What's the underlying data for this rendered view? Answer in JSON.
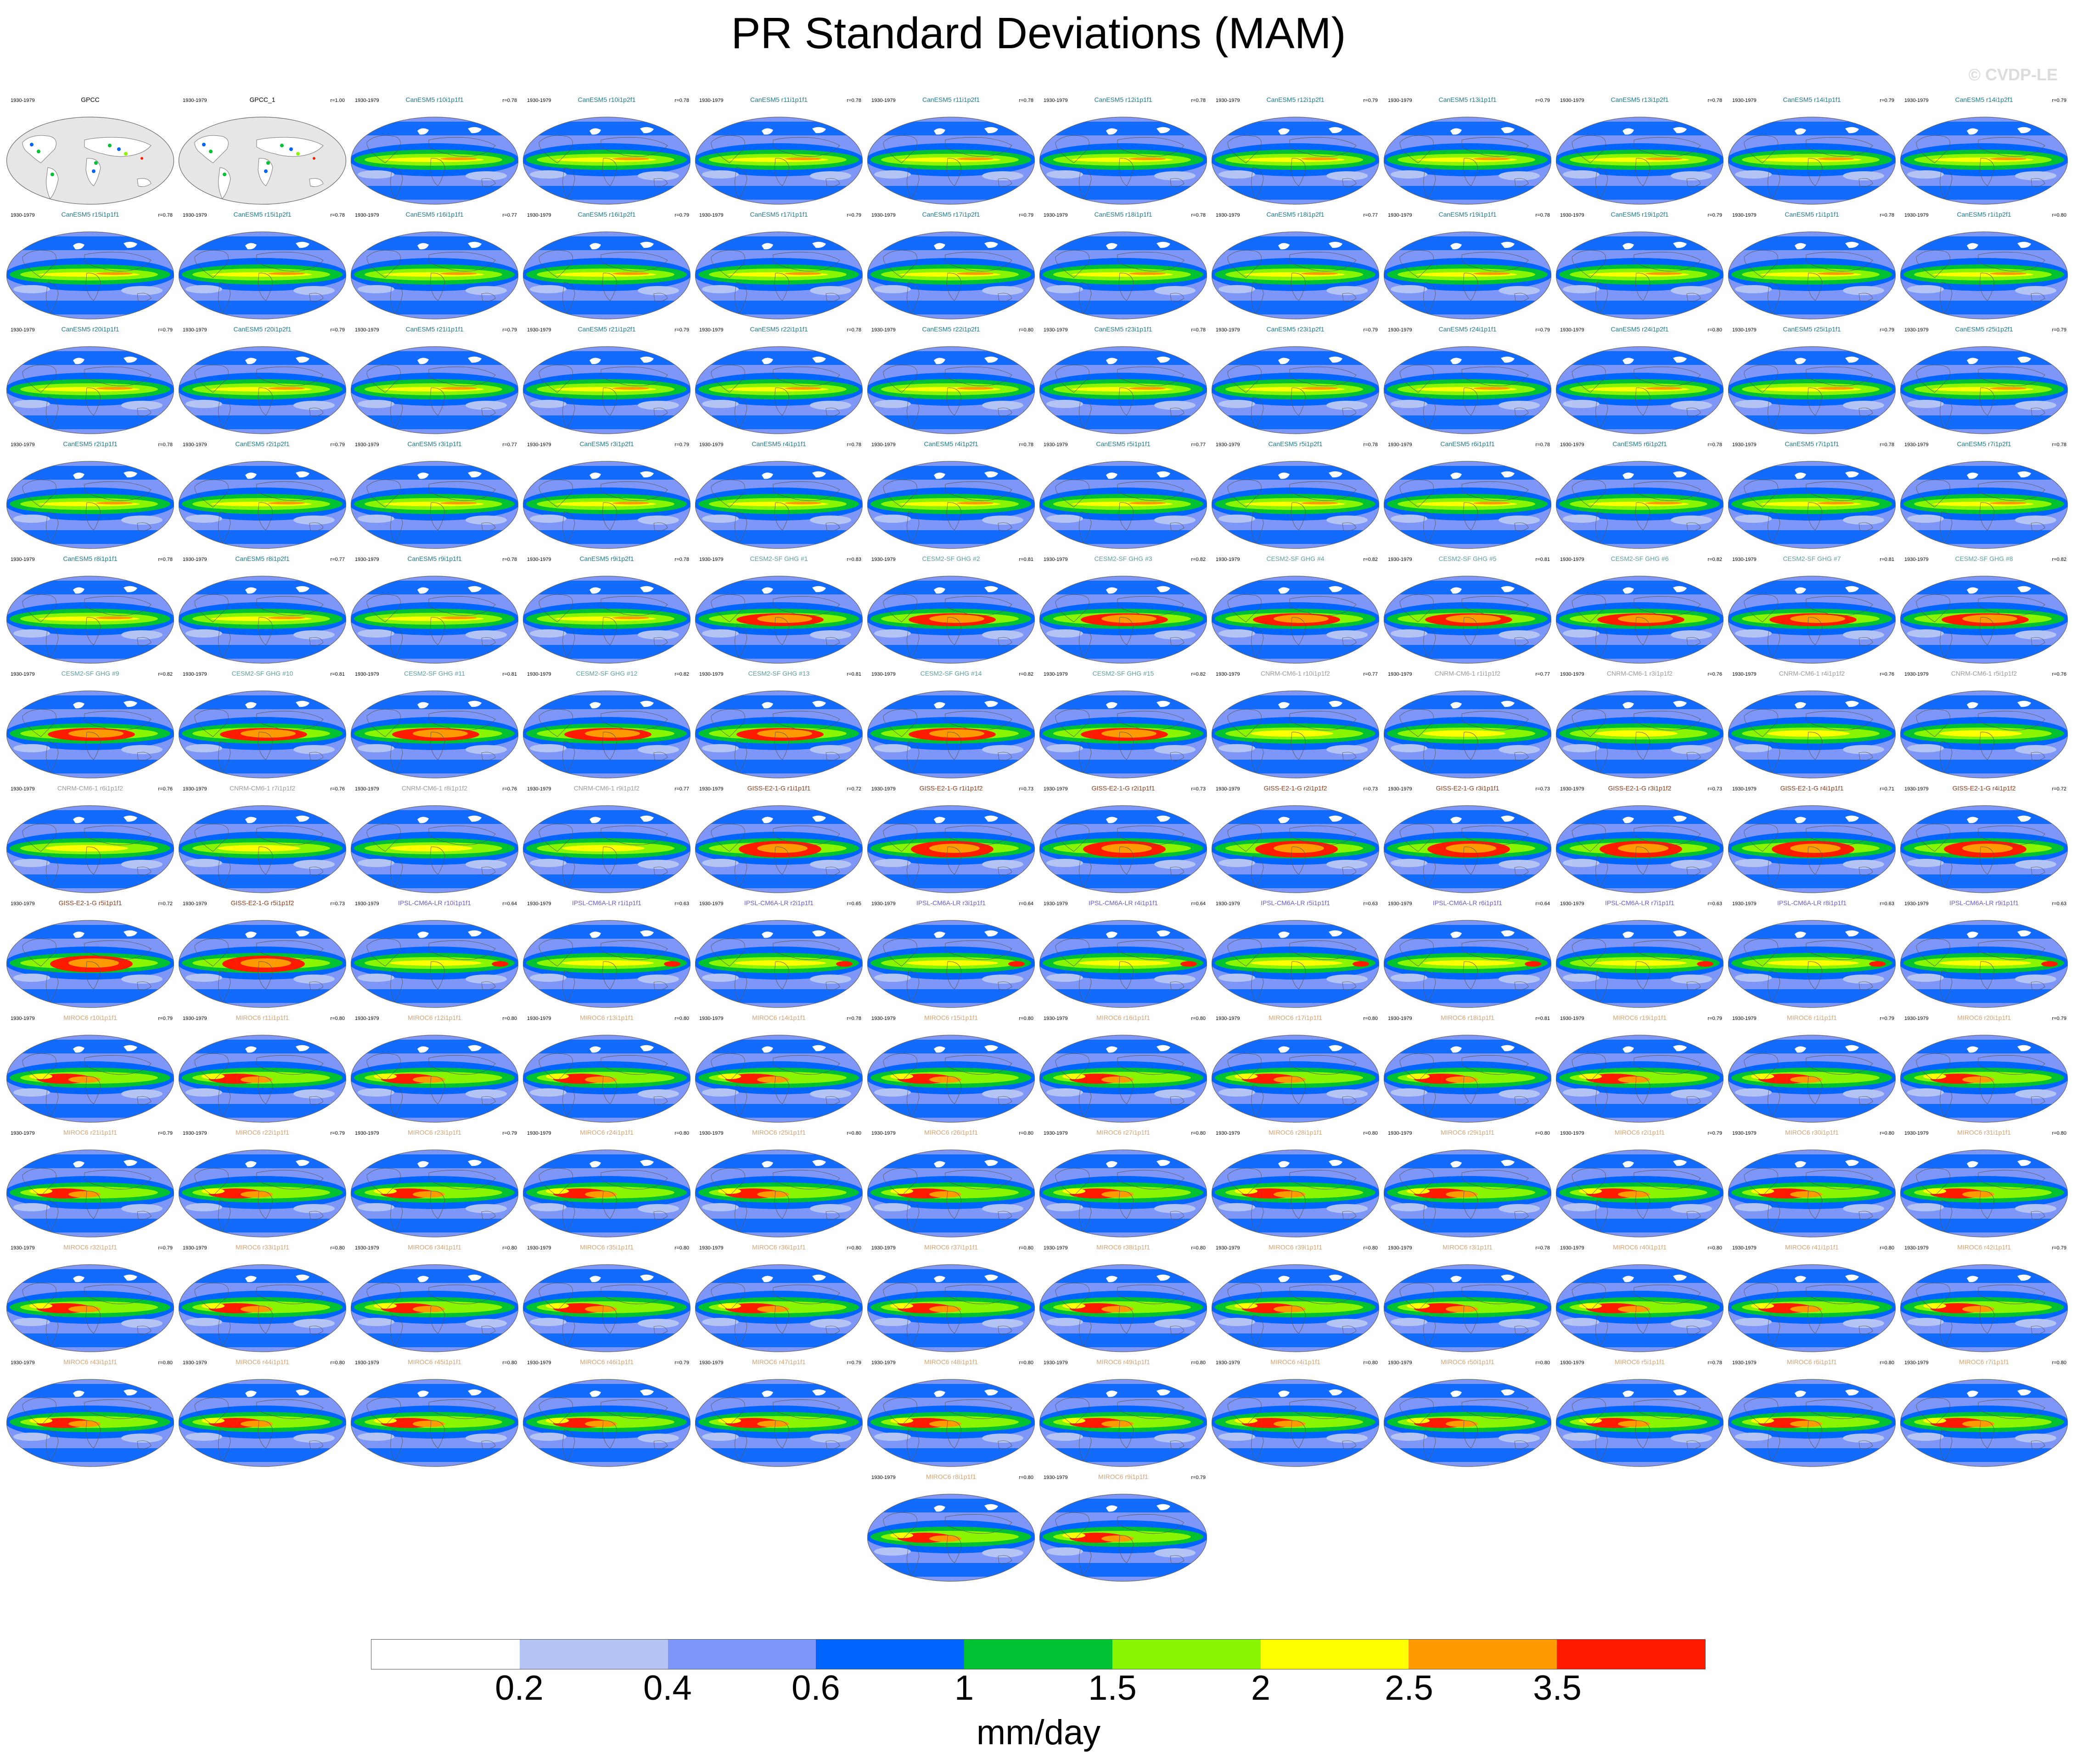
{
  "title": "PR Standard Deviations (MAM)",
  "watermark": "© CVDP-LE",
  "period": "1930-1979",
  "panels": [
    {
      "name": "GPCC",
      "r": "",
      "kind": "obs",
      "color": "#000000"
    },
    {
      "name": "GPCC_1",
      "r": "r=1.00",
      "kind": "obs",
      "color": "#000000"
    },
    {
      "name": "CanESM5 r10i1p1f1",
      "r": "r=0.78",
      "kind": "can",
      "color": "#1f7a8c"
    },
    {
      "name": "CanESM5 r10i1p2f1",
      "r": "r=0.78",
      "kind": "can",
      "color": "#1f7a8c"
    },
    {
      "name": "CanESM5 r11i1p1f1",
      "r": "r=0.78",
      "kind": "can",
      "color": "#1f7a8c"
    },
    {
      "name": "CanESM5 r11i1p2f1",
      "r": "r=0.78",
      "kind": "can",
      "color": "#1f7a8c"
    },
    {
      "name": "CanESM5 r12i1p1f1",
      "r": "r=0.78",
      "kind": "can",
      "color": "#1f7a8c"
    },
    {
      "name": "CanESM5 r12i1p2f1",
      "r": "r=0.79",
      "kind": "can",
      "color": "#1f7a8c"
    },
    {
      "name": "CanESM5 r13i1p1f1",
      "r": "r=0.79",
      "kind": "can",
      "color": "#1f7a8c"
    },
    {
      "name": "CanESM5 r13i1p2f1",
      "r": "r=0.78",
      "kind": "can",
      "color": "#1f7a8c"
    },
    {
      "name": "CanESM5 r14i1p1f1",
      "r": "r=0.79",
      "kind": "can",
      "color": "#1f7a8c"
    },
    {
      "name": "CanESM5 r14i1p2f1",
      "r": "r=0.79",
      "kind": "can",
      "color": "#1f7a8c"
    },
    {
      "name": "CanESM5 r15i1p1f1",
      "r": "r=0.78",
      "kind": "can",
      "color": "#1f7a8c"
    },
    {
      "name": "CanESM5 r15i1p2f1",
      "r": "r=0.78",
      "kind": "can",
      "color": "#1f7a8c"
    },
    {
      "name": "CanESM5 r16i1p1f1",
      "r": "r=0.77",
      "kind": "can",
      "color": "#1f7a8c"
    },
    {
      "name": "CanESM5 r16i1p2f1",
      "r": "r=0.79",
      "kind": "can",
      "color": "#1f7a8c"
    },
    {
      "name": "CanESM5 r17i1p1f1",
      "r": "r=0.79",
      "kind": "can",
      "color": "#1f7a8c"
    },
    {
      "name": "CanESM5 r17i1p2f1",
      "r": "r=0.79",
      "kind": "can",
      "color": "#1f7a8c"
    },
    {
      "name": "CanESM5 r18i1p1f1",
      "r": "r=0.78",
      "kind": "can",
      "color": "#1f7a8c"
    },
    {
      "name": "CanESM5 r18i1p2f1",
      "r": "r=0.77",
      "kind": "can",
      "color": "#1f7a8c"
    },
    {
      "name": "CanESM5 r19i1p1f1",
      "r": "r=0.78",
      "kind": "can",
      "color": "#1f7a8c"
    },
    {
      "name": "CanESM5 r19i1p2f1",
      "r": "r=0.79",
      "kind": "can",
      "color": "#1f7a8c"
    },
    {
      "name": "CanESM5 r1i1p1f1",
      "r": "r=0.78",
      "kind": "can",
      "color": "#1f7a8c"
    },
    {
      "name": "CanESM5 r1i1p2f1",
      "r": "r=0.80",
      "kind": "can",
      "color": "#1f7a8c"
    },
    {
      "name": "CanESM5 r20i1p1f1",
      "r": "r=0.79",
      "kind": "can",
      "color": "#1f7a8c"
    },
    {
      "name": "CanESM5 r20i1p2f1",
      "r": "r=0.79",
      "kind": "can",
      "color": "#1f7a8c"
    },
    {
      "name": "CanESM5 r21i1p1f1",
      "r": "r=0.79",
      "kind": "can",
      "color": "#1f7a8c"
    },
    {
      "name": "CanESM5 r21i1p2f1",
      "r": "r=0.79",
      "kind": "can",
      "color": "#1f7a8c"
    },
    {
      "name": "CanESM5 r22i1p1f1",
      "r": "r=0.78",
      "kind": "can",
      "color": "#1f7a8c"
    },
    {
      "name": "CanESM5 r22i1p2f1",
      "r": "r=0.80",
      "kind": "can",
      "color": "#1f7a8c"
    },
    {
      "name": "CanESM5 r23i1p1f1",
      "r": "r=0.78",
      "kind": "can",
      "color": "#1f7a8c"
    },
    {
      "name": "CanESM5 r23i1p2f1",
      "r": "r=0.79",
      "kind": "can",
      "color": "#1f7a8c"
    },
    {
      "name": "CanESM5 r24i1p1f1",
      "r": "r=0.79",
      "kind": "can",
      "color": "#1f7a8c"
    },
    {
      "name": "CanESM5 r24i1p2f1",
      "r": "r=0.80",
      "kind": "can",
      "color": "#1f7a8c"
    },
    {
      "name": "CanESM5 r25i1p1f1",
      "r": "r=0.79",
      "kind": "can",
      "color": "#1f7a8c"
    },
    {
      "name": "CanESM5 r25i1p2f1",
      "r": "r=0.79",
      "kind": "can",
      "color": "#1f7a8c"
    },
    {
      "name": "CanESM5 r2i1p1f1",
      "r": "r=0.78",
      "kind": "can",
      "color": "#1f7a8c"
    },
    {
      "name": "CanESM5 r2i1p2f1",
      "r": "r=0.79",
      "kind": "can",
      "color": "#1f7a8c"
    },
    {
      "name": "CanESM5 r3i1p1f1",
      "r": "r=0.77",
      "kind": "can",
      "color": "#1f7a8c"
    },
    {
      "name": "CanESM5 r3i1p2f1",
      "r": "r=0.79",
      "kind": "can",
      "color": "#1f7a8c"
    },
    {
      "name": "CanESM5 r4i1p1f1",
      "r": "r=0.78",
      "kind": "can",
      "color": "#1f7a8c"
    },
    {
      "name": "CanESM5 r4i1p2f1",
      "r": "r=0.78",
      "kind": "can",
      "color": "#1f7a8c"
    },
    {
      "name": "CanESM5 r5i1p1f1",
      "r": "r=0.77",
      "kind": "can",
      "color": "#1f7a8c"
    },
    {
      "name": "CanESM5 r5i1p2f1",
      "r": "r=0.78",
      "kind": "can",
      "color": "#1f7a8c"
    },
    {
      "name": "CanESM5 r6i1p1f1",
      "r": "r=0.78",
      "kind": "can",
      "color": "#1f7a8c"
    },
    {
      "name": "CanESM5 r6i1p2f1",
      "r": "r=0.78",
      "kind": "can",
      "color": "#1f7a8c"
    },
    {
      "name": "CanESM5 r7i1p1f1",
      "r": "r=0.78",
      "kind": "can",
      "color": "#1f7a8c"
    },
    {
      "name": "CanESM5 r7i1p2f1",
      "r": "r=0.78",
      "kind": "can",
      "color": "#1f7a8c"
    },
    {
      "name": "CanESM5 r8i1p1f1",
      "r": "r=0.78",
      "kind": "can",
      "color": "#1f7a8c"
    },
    {
      "name": "CanESM5 r8i1p2f1",
      "r": "r=0.77",
      "kind": "can",
      "color": "#1f7a8c"
    },
    {
      "name": "CanESM5 r9i1p1f1",
      "r": "r=0.78",
      "kind": "can",
      "color": "#1f7a8c"
    },
    {
      "name": "CanESM5 r9i1p2f1",
      "r": "r=0.78",
      "kind": "can",
      "color": "#1f7a8c"
    },
    {
      "name": "CESM2-SF GHG #1",
      "r": "r=0.83",
      "kind": "cesm",
      "color": "#5f9ea0"
    },
    {
      "name": "CESM2-SF GHG #2",
      "r": "r=0.81",
      "kind": "cesm",
      "color": "#5f9ea0"
    },
    {
      "name": "CESM2-SF GHG #3",
      "r": "r=0.82",
      "kind": "cesm",
      "color": "#5f9ea0"
    },
    {
      "name": "CESM2-SF GHG #4",
      "r": "r=0.82",
      "kind": "cesm",
      "color": "#5f9ea0"
    },
    {
      "name": "CESM2-SF GHG #5",
      "r": "r=0.81",
      "kind": "cesm",
      "color": "#5f9ea0"
    },
    {
      "name": "CESM2-SF GHG #6",
      "r": "r=0.82",
      "kind": "cesm",
      "color": "#5f9ea0"
    },
    {
      "name": "CESM2-SF GHG #7",
      "r": "r=0.81",
      "kind": "cesm",
      "color": "#5f9ea0"
    },
    {
      "name": "CESM2-SF GHG #8",
      "r": "r=0.82",
      "kind": "cesm",
      "color": "#5f9ea0"
    },
    {
      "name": "CESM2-SF GHG #9",
      "r": "r=0.82",
      "kind": "cesm",
      "color": "#5f9ea0"
    },
    {
      "name": "CESM2-SF GHG #10",
      "r": "r=0.81",
      "kind": "cesm",
      "color": "#5f9ea0"
    },
    {
      "name": "CESM2-SF GHG #11",
      "r": "r=0.81",
      "kind": "cesm",
      "color": "#5f9ea0"
    },
    {
      "name": "CESM2-SF GHG #12",
      "r": "r=0.82",
      "kind": "cesm",
      "color": "#5f9ea0"
    },
    {
      "name": "CESM2-SF GHG #13",
      "r": "r=0.81",
      "kind": "cesm",
      "color": "#5f9ea0"
    },
    {
      "name": "CESM2-SF GHG #14",
      "r": "r=0.82",
      "kind": "cesm",
      "color": "#5f9ea0"
    },
    {
      "name": "CESM2-SF GHG #15",
      "r": "r=0.82",
      "kind": "cesm",
      "color": "#5f9ea0"
    },
    {
      "name": "CNRM-CM6-1 r10i1p1f2",
      "r": "r=0.77",
      "kind": "cnrm",
      "color": "#9a9a9a"
    },
    {
      "name": "CNRM-CM6-1 r1i1p1f2",
      "r": "r=0.77",
      "kind": "cnrm",
      "color": "#9a9a9a"
    },
    {
      "name": "CNRM-CM6-1 r3i1p1f2",
      "r": "r=0.76",
      "kind": "cnrm",
      "color": "#9a9a9a"
    },
    {
      "name": "CNRM-CM6-1 r4i1p1f2",
      "r": "r=0.76",
      "kind": "cnrm",
      "color": "#9a9a9a"
    },
    {
      "name": "CNRM-CM6-1 r5i1p1f2",
      "r": "r=0.76",
      "kind": "cnrm",
      "color": "#9a9a9a"
    },
    {
      "name": "CNRM-CM6-1 r6i1p1f2",
      "r": "r=0.76",
      "kind": "cnrm",
      "color": "#9a9a9a"
    },
    {
      "name": "CNRM-CM6-1 r7i1p1f2",
      "r": "r=0.76",
      "kind": "cnrm",
      "color": "#9a9a9a"
    },
    {
      "name": "CNRM-CM6-1 r8i1p1f2",
      "r": "r=0.76",
      "kind": "cnrm",
      "color": "#9a9a9a"
    },
    {
      "name": "CNRM-CM6-1 r9i1p1f2",
      "r": "r=0.77",
      "kind": "cnrm",
      "color": "#9a9a9a"
    },
    {
      "name": "GISS-E2-1-G r1i1p1f1",
      "r": "r=0.72",
      "kind": "giss",
      "color": "#8b3a1a"
    },
    {
      "name": "GISS-E2-1-G r1i1p1f2",
      "r": "r=0.73",
      "kind": "giss",
      "color": "#8b3a1a"
    },
    {
      "name": "GISS-E2-1-G r2i1p1f1",
      "r": "r=0.73",
      "kind": "giss",
      "color": "#8b3a1a"
    },
    {
      "name": "GISS-E2-1-G r2i1p1f2",
      "r": "r=0.73",
      "kind": "giss",
      "color": "#8b3a1a"
    },
    {
      "name": "GISS-E2-1-G r3i1p1f1",
      "r": "r=0.73",
      "kind": "giss",
      "color": "#8b3a1a"
    },
    {
      "name": "GISS-E2-1-G r3i1p1f2",
      "r": "r=0.73",
      "kind": "giss",
      "color": "#8b3a1a"
    },
    {
      "name": "GISS-E2-1-G r4i1p1f1",
      "r": "r=0.71",
      "kind": "giss",
      "color": "#8b3a1a"
    },
    {
      "name": "GISS-E2-1-G r4i1p1f2",
      "r": "r=0.72",
      "kind": "giss",
      "color": "#8b3a1a"
    },
    {
      "name": "GISS-E2-1-G r5i1p1f1",
      "r": "r=0.72",
      "kind": "giss",
      "color": "#8b3a1a"
    },
    {
      "name": "GISS-E2-1-G r5i1p1f2",
      "r": "r=0.73",
      "kind": "giss",
      "color": "#8b3a1a"
    },
    {
      "name": "IPSL-CM6A-LR r10i1p1f1",
      "r": "r=0.64",
      "kind": "ipsl",
      "color": "#6a5acd"
    },
    {
      "name": "IPSL-CM6A-LR r1i1p1f1",
      "r": "r=0.63",
      "kind": "ipsl",
      "color": "#6a5acd"
    },
    {
      "name": "IPSL-CM6A-LR r2i1p1f1",
      "r": "r=0.65",
      "kind": "ipsl",
      "color": "#6a5acd"
    },
    {
      "name": "IPSL-CM6A-LR r3i1p1f1",
      "r": "r=0.64",
      "kind": "ipsl",
      "color": "#6a5acd"
    },
    {
      "name": "IPSL-CM6A-LR r4i1p1f1",
      "r": "r=0.64",
      "kind": "ipsl",
      "color": "#6a5acd"
    },
    {
      "name": "IPSL-CM6A-LR r5i1p1f1",
      "r": "r=0.63",
      "kind": "ipsl",
      "color": "#6a5acd"
    },
    {
      "name": "IPSL-CM6A-LR r6i1p1f1",
      "r": "r=0.64",
      "kind": "ipsl",
      "color": "#6a5acd"
    },
    {
      "name": "IPSL-CM6A-LR r7i1p1f1",
      "r": "r=0.63",
      "kind": "ipsl",
      "color": "#6a5acd"
    },
    {
      "name": "IPSL-CM6A-LR r8i1p1f1",
      "r": "r=0.63",
      "kind": "ipsl",
      "color": "#6a5acd"
    },
    {
      "name": "IPSL-CM6A-LR r9i1p1f1",
      "r": "r=0.63",
      "kind": "ipsl",
      "color": "#6a5acd"
    },
    {
      "name": "MIROC6 r10i1p1f1",
      "r": "r=0.79",
      "kind": "miroc",
      "color": "#d4a373"
    },
    {
      "name": "MIROC6 r11i1p1f1",
      "r": "r=0.80",
      "kind": "miroc",
      "color": "#d4a373"
    },
    {
      "name": "MIROC6 r12i1p1f1",
      "r": "r=0.80",
      "kind": "miroc",
      "color": "#d4a373"
    },
    {
      "name": "MIROC6 r13i1p1f1",
      "r": "r=0.80",
      "kind": "miroc",
      "color": "#d4a373"
    },
    {
      "name": "MIROC6 r14i1p1f1",
      "r": "r=0.78",
      "kind": "miroc",
      "color": "#d4a373"
    },
    {
      "name": "MIROC6 r15i1p1f1",
      "r": "r=0.80",
      "kind": "miroc",
      "color": "#d4a373"
    },
    {
      "name": "MIROC6 r16i1p1f1",
      "r": "r=0.80",
      "kind": "miroc",
      "color": "#d4a373"
    },
    {
      "name": "MIROC6 r17i1p1f1",
      "r": "r=0.80",
      "kind": "miroc",
      "color": "#d4a373"
    },
    {
      "name": "MIROC6 r18i1p1f1",
      "r": "r=0.81",
      "kind": "miroc",
      "color": "#d4a373"
    },
    {
      "name": "MIROC6 r19i1p1f1",
      "r": "r=0.79",
      "kind": "miroc",
      "color": "#d4a373"
    },
    {
      "name": "MIROC6 r1i1p1f1",
      "r": "r=0.79",
      "kind": "miroc",
      "color": "#d4a373"
    },
    {
      "name": "MIROC6 r20i1p1f1",
      "r": "r=0.79",
      "kind": "miroc",
      "color": "#d4a373"
    },
    {
      "name": "MIROC6 r21i1p1f1",
      "r": "r=0.79",
      "kind": "miroc",
      "color": "#d4a373"
    },
    {
      "name": "MIROC6 r22i1p1f1",
      "r": "r=0.79",
      "kind": "miroc",
      "color": "#d4a373"
    },
    {
      "name": "MIROC6 r23i1p1f1",
      "r": "r=0.79",
      "kind": "miroc",
      "color": "#d4a373"
    },
    {
      "name": "MIROC6 r24i1p1f1",
      "r": "r=0.80",
      "kind": "miroc",
      "color": "#d4a373"
    },
    {
      "name": "MIROC6 r25i1p1f1",
      "r": "r=0.80",
      "kind": "miroc",
      "color": "#d4a373"
    },
    {
      "name": "MIROC6 r26i1p1f1",
      "r": "r=0.80",
      "kind": "miroc",
      "color": "#d4a373"
    },
    {
      "name": "MIROC6 r27i1p1f1",
      "r": "r=0.80",
      "kind": "miroc",
      "color": "#d4a373"
    },
    {
      "name": "MIROC6 r28i1p1f1",
      "r": "r=0.80",
      "kind": "miroc",
      "color": "#d4a373"
    },
    {
      "name": "MIROC6 r29i1p1f1",
      "r": "r=0.80",
      "kind": "miroc",
      "color": "#d4a373"
    },
    {
      "name": "MIROC6 r2i1p1f1",
      "r": "r=0.79",
      "kind": "miroc",
      "color": "#d4a373"
    },
    {
      "name": "MIROC6 r30i1p1f1",
      "r": "r=0.80",
      "kind": "miroc",
      "color": "#d4a373"
    },
    {
      "name": "MIROC6 r31i1p1f1",
      "r": "r=0.80",
      "kind": "miroc",
      "color": "#d4a373"
    },
    {
      "name": "MIROC6 r32i1p1f1",
      "r": "r=0.79",
      "kind": "miroc",
      "color": "#d4a373"
    },
    {
      "name": "MIROC6 r33i1p1f1",
      "r": "r=0.80",
      "kind": "miroc",
      "color": "#d4a373"
    },
    {
      "name": "MIROC6 r34i1p1f1",
      "r": "r=0.80",
      "kind": "miroc",
      "color": "#d4a373"
    },
    {
      "name": "MIROC6 r35i1p1f1",
      "r": "r=0.80",
      "kind": "miroc",
      "color": "#d4a373"
    },
    {
      "name": "MIROC6 r36i1p1f1",
      "r": "r=0.80",
      "kind": "miroc",
      "color": "#d4a373"
    },
    {
      "name": "MIROC6 r37i1p1f1",
      "r": "r=0.80",
      "kind": "miroc",
      "color": "#d4a373"
    },
    {
      "name": "MIROC6 r38i1p1f1",
      "r": "r=0.80",
      "kind": "miroc",
      "color": "#d4a373"
    },
    {
      "name": "MIROC6 r39i1p1f1",
      "r": "r=0.80",
      "kind": "miroc",
      "color": "#d4a373"
    },
    {
      "name": "MIROC6 r3i1p1f1",
      "r": "r=0.78",
      "kind": "miroc",
      "color": "#d4a373"
    },
    {
      "name": "MIROC6 r40i1p1f1",
      "r": "r=0.80",
      "kind": "miroc",
      "color": "#d4a373"
    },
    {
      "name": "MIROC6 r41i1p1f1",
      "r": "r=0.80",
      "kind": "miroc",
      "color": "#d4a373"
    },
    {
      "name": "MIROC6 r42i1p1f1",
      "r": "r=0.79",
      "kind": "miroc",
      "color": "#d4a373"
    },
    {
      "name": "MIROC6 r43i1p1f1",
      "r": "r=0.80",
      "kind": "miroc",
      "color": "#d4a373"
    },
    {
      "name": "MIROC6 r44i1p1f1",
      "r": "r=0.80",
      "kind": "miroc",
      "color": "#d4a373"
    },
    {
      "name": "MIROC6 r45i1p1f1",
      "r": "r=0.80",
      "kind": "miroc",
      "color": "#d4a373"
    },
    {
      "name": "MIROC6 r46i1p1f1",
      "r": "r=0.79",
      "kind": "miroc",
      "color": "#d4a373"
    },
    {
      "name": "MIROC6 r47i1p1f1",
      "r": "r=0.79",
      "kind": "miroc",
      "color": "#d4a373"
    },
    {
      "name": "MIROC6 r48i1p1f1",
      "r": "r=0.80",
      "kind": "miroc",
      "color": "#d4a373"
    },
    {
      "name": "MIROC6 r49i1p1f1",
      "r": "r=0.80",
      "kind": "miroc",
      "color": "#d4a373"
    },
    {
      "name": "MIROC6 r4i1p1f1",
      "r": "r=0.80",
      "kind": "miroc",
      "color": "#d4a373"
    },
    {
      "name": "MIROC6 r50i1p1f1",
      "r": "r=0.80",
      "kind": "miroc",
      "color": "#d4a373"
    },
    {
      "name": "MIROC6 r5i1p1f1",
      "r": "r=0.78",
      "kind": "miroc",
      "color": "#d4a373"
    },
    {
      "name": "MIROC6 r6i1p1f1",
      "r": "r=0.80",
      "kind": "miroc",
      "color": "#d4a373"
    },
    {
      "name": "MIROC6 r7i1p1f1",
      "r": "r=0.80",
      "kind": "miroc",
      "color": "#d4a373"
    },
    {
      "name": "MIROC6 r8i1p1f1",
      "r": "r=0.80",
      "kind": "miroc",
      "color": "#d4a373"
    },
    {
      "name": "MIROC6 r9i1p1f1",
      "r": "r=0.79",
      "kind": "miroc",
      "color": "#d4a373"
    }
  ],
  "colorbar": {
    "colors": [
      "#ffffff",
      "#b4c4f4",
      "#7e96f7",
      "#0064ff",
      "#00c131",
      "#8af500",
      "#ffff00",
      "#ff9b00",
      "#ff1a00"
    ],
    "ticks": [
      "0.2",
      "0.4",
      "0.6",
      "1",
      "1.5",
      "2",
      "2.5",
      "3.5"
    ],
    "units": "mm/day"
  }
}
